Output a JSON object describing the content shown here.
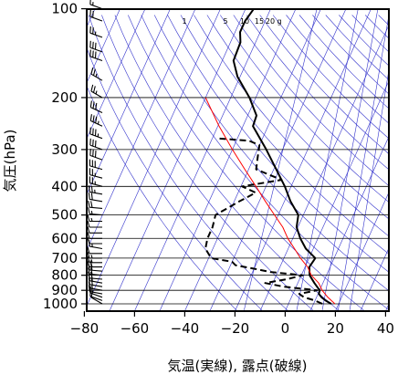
{
  "chart_data": {
    "type": "line",
    "xlabel": "気温(実線), 露点(破線)",
    "ylabel": "気圧(hPa)",
    "xlim": [
      -80,
      40
    ],
    "ylim": [
      1050,
      100
    ],
    "y_scale": "log",
    "skew": "skew-T log-p",
    "xticks": [
      -80,
      -60,
      -40,
      -20,
      0,
      20,
      40
    ],
    "yticks": [
      100,
      200,
      300,
      400,
      500,
      600,
      700,
      800,
      900,
      1000
    ],
    "mixing_ratio_labels": [
      "1",
      "5",
      "10",
      "15",
      "20",
      "g"
    ],
    "colors": {
      "temperature": "#000000",
      "dewpoint": "#000000",
      "parcel": "#ff0000",
      "background_lines": "#3333cc",
      "grid": "#000000"
    },
    "series": [
      {
        "key": "temperature",
        "style": "solid",
        "p": [
          1000,
          975,
          950,
          925,
          900,
          850,
          800,
          750,
          700,
          650,
          600,
          550,
          500,
          450,
          400,
          350,
          300,
          250,
          230,
          200,
          170,
          150,
          130,
          120,
          110,
          100
        ],
        "t": [
          17.0,
          14.2,
          12.0,
          10.3,
          10.0,
          6.6,
          3.3,
          1.7,
          2.5,
          -3.0,
          -7.0,
          -10.5,
          -12.0,
          -17.5,
          -22.5,
          -29.0,
          -36.5,
          -46.0,
          -46.5,
          -52.5,
          -61.0,
          -65.5,
          -66.0,
          -68.0,
          -68.0,
          -66.7
        ]
      },
      {
        "key": "dewpoint",
        "style": "dashed",
        "p": [
          1000,
          975,
          950,
          925,
          900,
          875,
          850,
          825,
          800,
          780,
          760,
          740,
          720,
          700,
          650,
          600,
          550,
          500,
          450,
          420,
          400,
          380,
          350,
          310,
          290,
          280,
          275
        ],
        "t": [
          13.5,
          10.0,
          5.0,
          2.5,
          9.0,
          -5.0,
          -13.0,
          -5.0,
          0.5,
          -13.0,
          -20.0,
          -28.0,
          -30.0,
          -39.0,
          -43.0,
          -44.0,
          -44.0,
          -45.0,
          -38.0,
          -33.0,
          -39.5,
          -25.0,
          -37.0,
          -39.0,
          -40.0,
          -45.0,
          -58.0
        ]
      },
      {
        "key": "parcel",
        "style": "solid",
        "p": [
          1000,
          950,
          900,
          850,
          800,
          750,
          700,
          650,
          600,
          550,
          500,
          450,
          400,
          350,
          300,
          250,
          200
        ],
        "t": [
          18.5,
          14.5,
          11.0,
          8.3,
          4.0,
          1.0,
          -3.4,
          -7.5,
          -12.0,
          -16.0,
          -21.5,
          -27.5,
          -34.0,
          -41.5,
          -50.0,
          -59.5,
          -70.0
        ]
      }
    ],
    "wind_barbs": {
      "p": [
        1000,
        975,
        950,
        925,
        900,
        875,
        850,
        825,
        800,
        775,
        750,
        725,
        700,
        675,
        650,
        625,
        600,
        575,
        550,
        525,
        500,
        475,
        450,
        425,
        400,
        375,
        350,
        325,
        300,
        275,
        250,
        225,
        200,
        175,
        150,
        140,
        125,
        110,
        100
      ],
      "speed_kt": [
        10,
        10,
        10,
        15,
        15,
        20,
        20,
        20,
        20,
        20,
        20,
        15,
        15,
        10,
        15,
        10,
        10,
        10,
        10,
        15,
        15,
        20,
        20,
        25,
        25,
        25,
        30,
        30,
        30,
        35,
        35,
        30,
        25,
        25,
        30,
        30,
        25,
        20,
        15
      ],
      "direction_deg": [
        300,
        290,
        290,
        280,
        280,
        280,
        280,
        275,
        275,
        275,
        270,
        270,
        270,
        270,
        280,
        270,
        270,
        270,
        270,
        270,
        275,
        275,
        280,
        280,
        285,
        285,
        285,
        290,
        290,
        290,
        295,
        295,
        300,
        300,
        290,
        290,
        290,
        290,
        290
      ]
    }
  }
}
